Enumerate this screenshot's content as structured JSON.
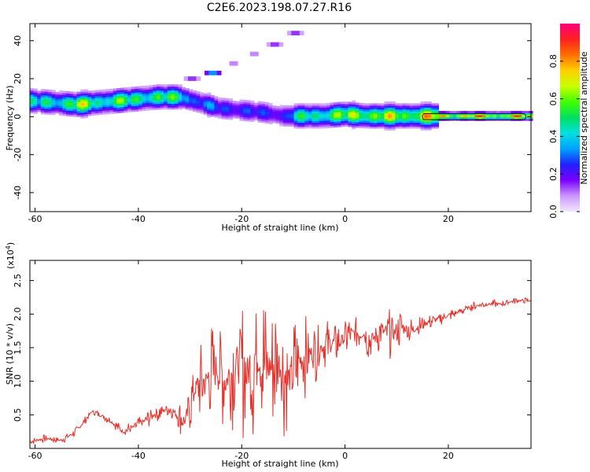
{
  "figure_title": "C2E6.2023.198.07.27.R16",
  "colors": {
    "snr_line": "#e8302a",
    "colormap": [
      "#f2e6ff",
      "#cc99ff",
      "#7a00ff",
      "#2020ff",
      "#00a0ff",
      "#00e0e0",
      "#00e060",
      "#40ff00",
      "#c8ff00",
      "#ffd000",
      "#ff7000",
      "#ff2020",
      "#ff0080"
    ]
  },
  "chart_data": [
    {
      "type": "heatmap",
      "xlabel": "Height of straight line (km)",
      "ylabel": "Frequency (Hz)",
      "xlim": [
        -61,
        36
      ],
      "ylim": [
        -50,
        49
      ],
      "xticks": [
        -60,
        -40,
        -20,
        0,
        20
      ],
      "yticks": [
        -40,
        -20,
        0,
        20,
        40
      ],
      "colorbar": {
        "label": "Normalized spectral amplitude",
        "range": [
          0,
          1
        ],
        "ticks": [
          0.0,
          0.2,
          0.4,
          0.6,
          0.8
        ]
      },
      "ridge": {
        "x": [
          -61,
          -56,
          -52,
          -48,
          -44,
          -40,
          -36,
          -32,
          -28,
          -24,
          -20,
          -16,
          -12,
          -8,
          -4,
          0,
          4,
          8,
          12,
          16,
          20,
          25,
          30,
          35
        ],
        "y": [
          8,
          7,
          6,
          7,
          8,
          9,
          10,
          10,
          7,
          4,
          3,
          2,
          0,
          0,
          0,
          1,
          0,
          0,
          0,
          0,
          0,
          0,
          0,
          0
        ],
        "peak": [
          0.55,
          0.6,
          0.8,
          0.7,
          0.7,
          0.65,
          0.7,
          0.6,
          0.4,
          0.35,
          0.35,
          0.3,
          0.35,
          0.6,
          0.7,
          0.75,
          0.85,
          0.8,
          0.85,
          0.9,
          0.95,
          0.95,
          0.95,
          0.95
        ]
      },
      "harmonic_branch": {
        "x": [
          -30,
          -26,
          -22,
          -18,
          -14,
          -10
        ],
        "y": [
          20,
          23,
          28,
          33,
          38,
          44
        ],
        "peak": [
          0.15,
          0.35,
          0.1,
          0.1,
          0.15,
          0.15
        ]
      }
    },
    {
      "type": "line",
      "xlabel": "Height of straight line (km)",
      "ylabel": "SNR (10 * v/v)",
      "y_multiplier": "(x10",
      "y_multiplier_exponent": "4",
      "y_multiplier_close": ")",
      "xlim": [
        -61,
        36
      ],
      "ylim": [
        0,
        2.8
      ],
      "xticks": [
        -60,
        -40,
        -20,
        0,
        20
      ],
      "yticks": [
        0.5,
        1.0,
        1.5,
        2.0,
        2.5
      ],
      "ytick_labels": [
        "0.5",
        "1.0",
        "1.5",
        "2.0",
        "2.5"
      ],
      "series": [
        {
          "x": [
            -61,
            -58,
            -55,
            -52,
            -49,
            -46,
            -43,
            -40,
            -37,
            -34,
            -31,
            -29,
            -27,
            -25,
            -23,
            -21,
            -19,
            -17,
            -15,
            -13,
            -11,
            -9,
            -7,
            -5,
            -3,
            -1,
            1,
            3,
            5,
            7,
            9,
            11,
            13,
            15,
            17,
            19,
            21,
            24,
            27,
            30,
            33,
            36
          ],
          "y": [
            0.1,
            0.15,
            0.12,
            0.25,
            0.55,
            0.45,
            0.25,
            0.35,
            0.5,
            0.6,
            0.4,
            0.9,
            1.0,
            1.2,
            1.0,
            1.3,
            1.1,
            1.4,
            1.2,
            1.3,
            1.0,
            1.3,
            1.4,
            1.5,
            1.55,
            1.6,
            1.7,
            1.75,
            1.6,
            1.75,
            1.7,
            1.8,
            1.75,
            1.85,
            1.9,
            1.95,
            2.0,
            2.1,
            2.15,
            2.15,
            2.2,
            2.2
          ],
          "amp": [
            0.05,
            0.06,
            0.06,
            0.08,
            0.05,
            0.08,
            0.1,
            0.12,
            0.15,
            0.15,
            0.3,
            0.55,
            0.7,
            0.85,
            0.8,
            1.0,
            1.1,
            1.3,
            1.2,
            1.1,
            1.0,
            0.8,
            0.55,
            0.45,
            0.4,
            0.35,
            0.35,
            0.3,
            0.35,
            0.3,
            0.4,
            0.3,
            0.2,
            0.15,
            0.12,
            0.1,
            0.1,
            0.08,
            0.07,
            0.06,
            0.05,
            0.05
          ]
        }
      ]
    }
  ]
}
